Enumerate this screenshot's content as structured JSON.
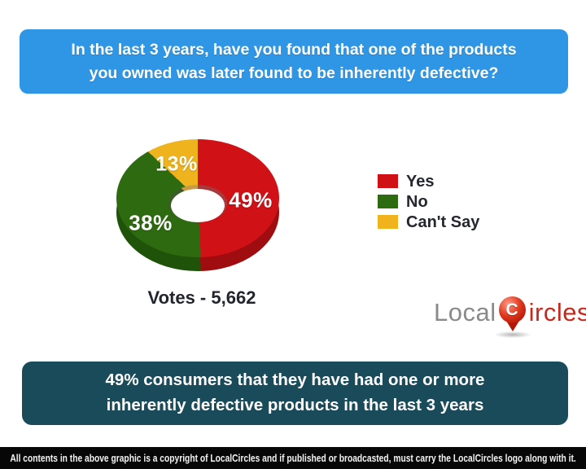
{
  "header": {
    "question": "In the last 3 years, have you found that one of the products you owned was later found to be inherently defective?",
    "bg_color": "#2e96e4"
  },
  "chart_data": {
    "type": "pie",
    "style": "3d-donut",
    "labels": [
      "Yes",
      "No",
      "Can't Say"
    ],
    "values": [
      49,
      38,
      13
    ],
    "pct_labels": [
      "49%",
      "38%",
      "13%"
    ],
    "colors": [
      "#cf1116",
      "#2d6b10",
      "#f0b31d"
    ],
    "legend_position": "right",
    "votes_label": "Votes - 5,662",
    "total_votes": "5,662"
  },
  "logo": {
    "part1": "Local",
    "pin_letter": "C",
    "part2": "ircles"
  },
  "summary": {
    "text": "49% consumers that they have had one or more inherently defective products in the last 3 years",
    "bg_color": "#1a4b5a"
  },
  "footer": {
    "text": "All contents in the above graphic is a copyright of LocalCircles and if published or broadcasted, must carry the LocalCircles logo along with it."
  }
}
